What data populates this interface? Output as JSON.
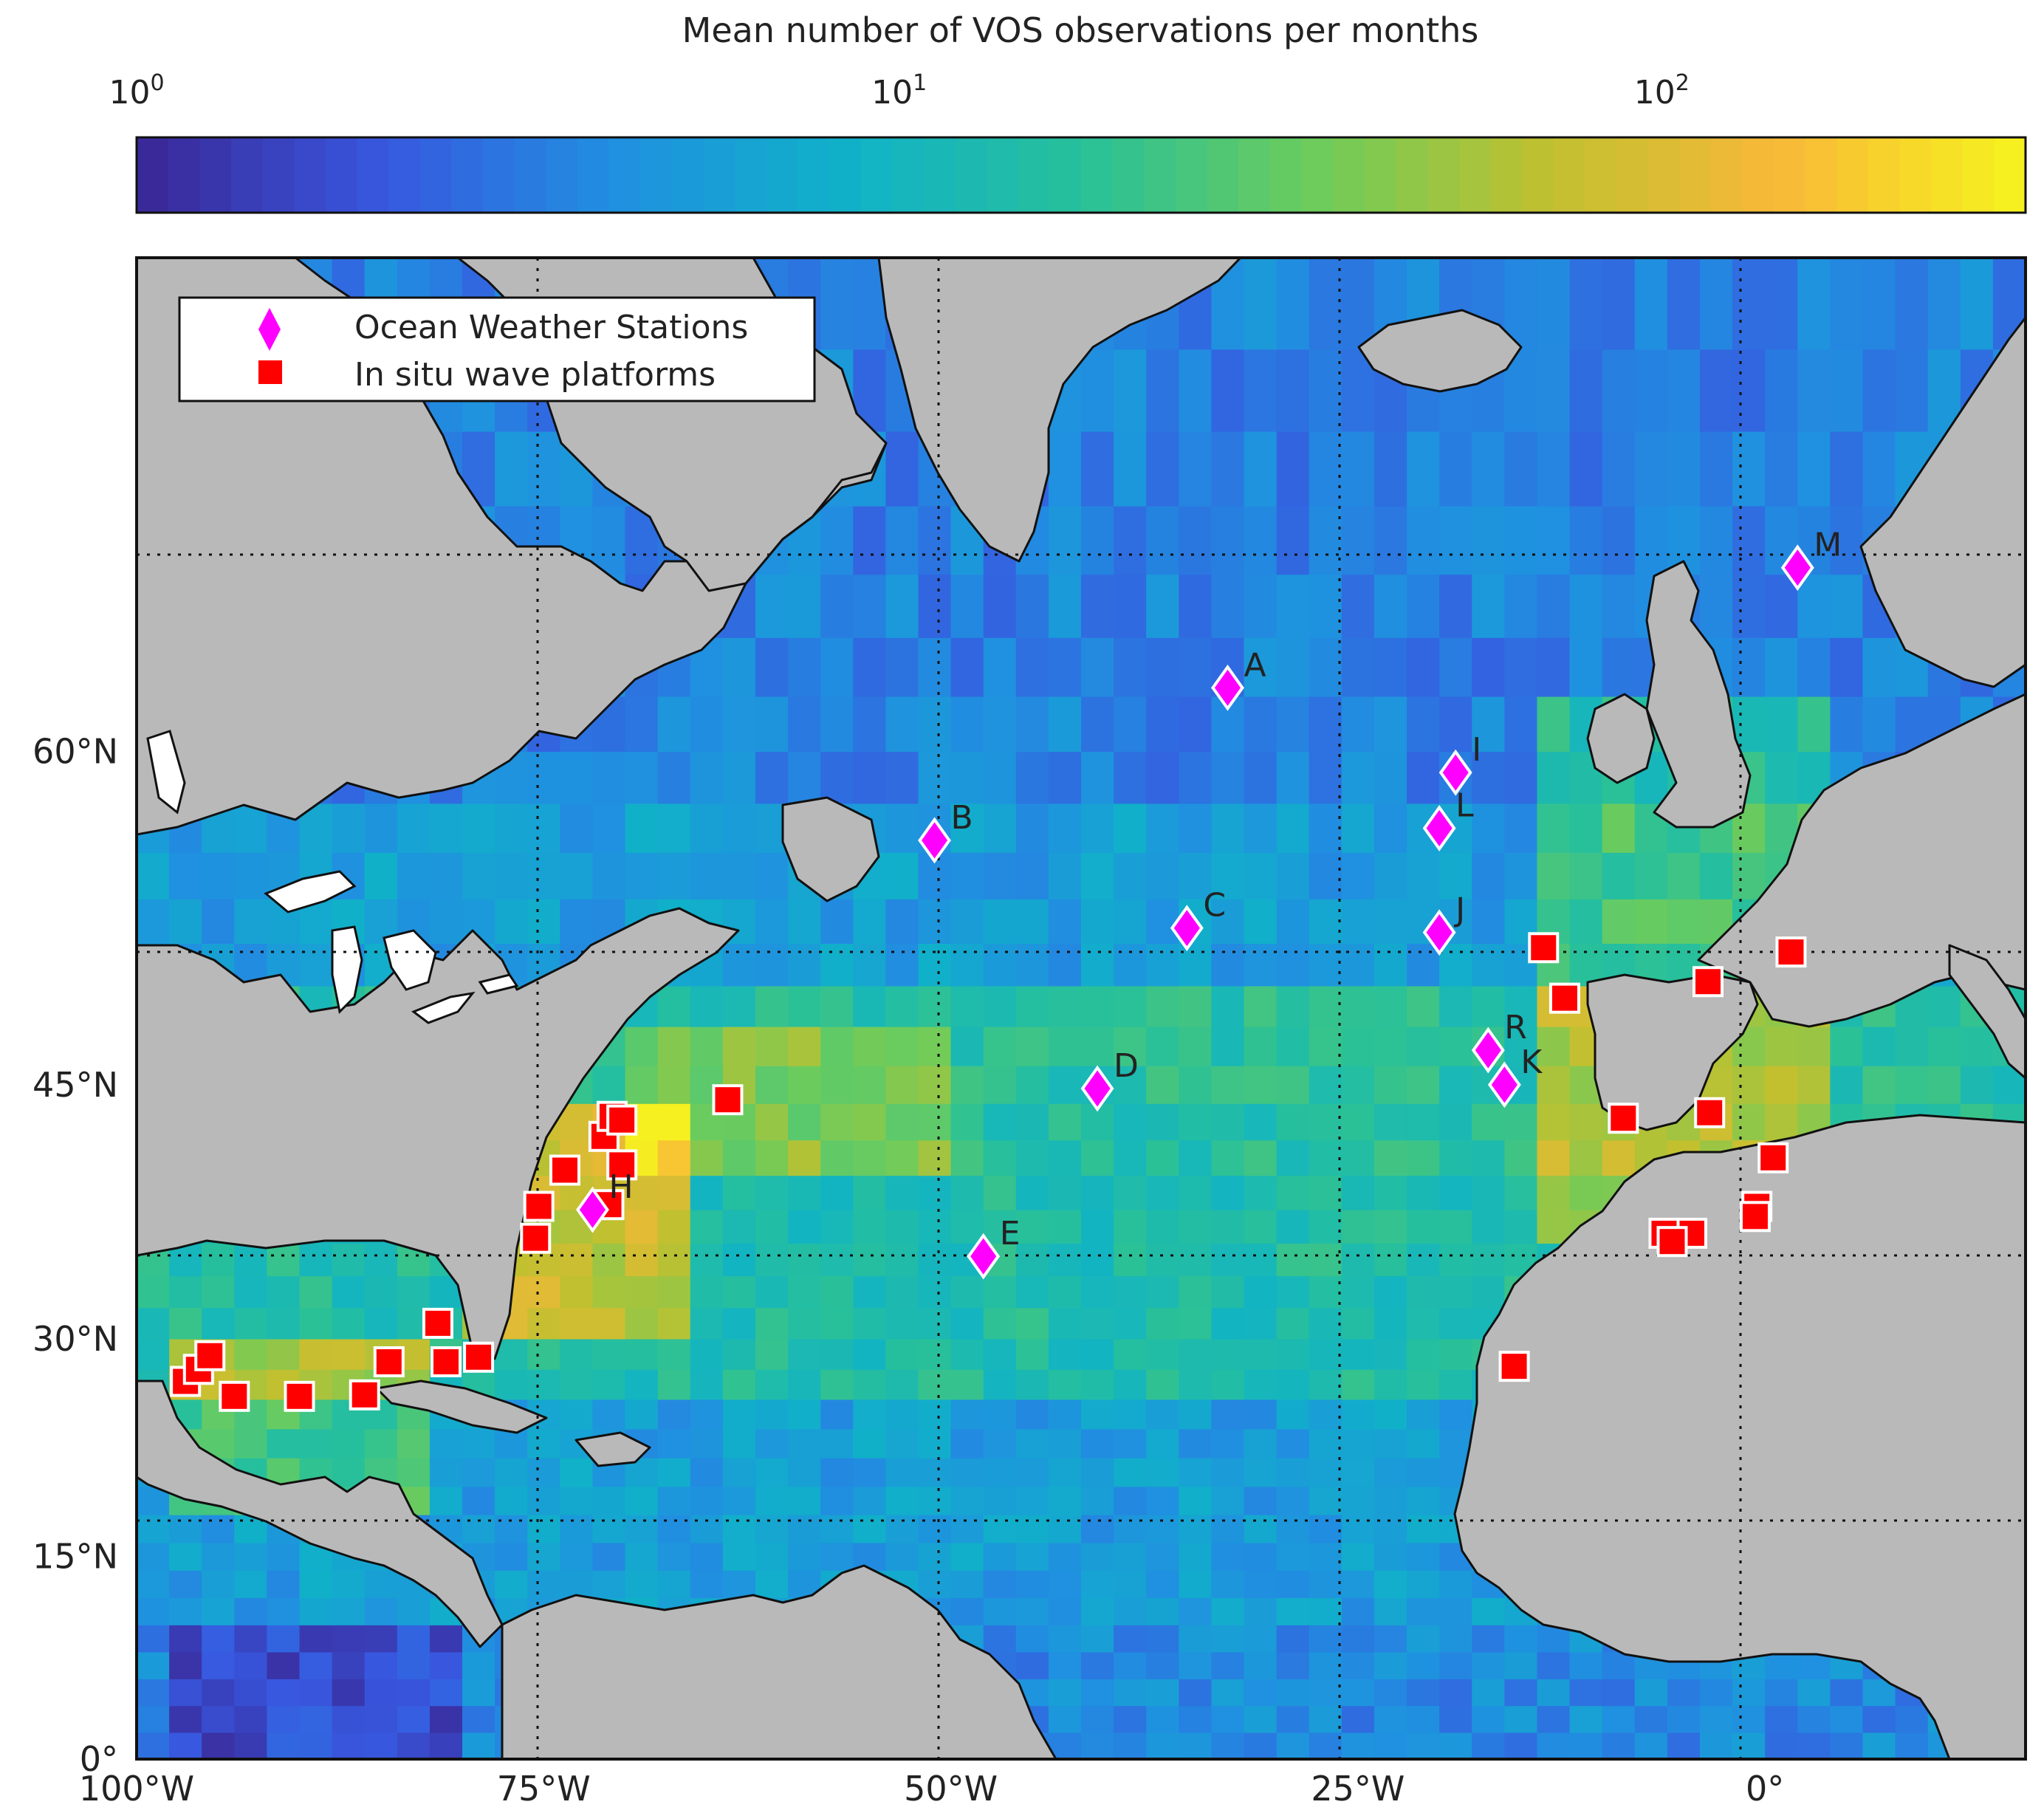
{
  "colorbar": {
    "title": "Mean number of VOS observations per months",
    "tick_labels": [
      {
        "base": "10",
        "exp": "0",
        "value": 1
      },
      {
        "base": "10",
        "exp": "1",
        "value": 10
      },
      {
        "base": "10",
        "exp": "2",
        "value": 100
      }
    ],
    "scale": "log",
    "range": [
      1,
      300
    ],
    "colors": [
      "#3a2a99",
      "#3858e0",
      "#2090e0",
      "#10b2c8",
      "#28c09a",
      "#6ccc5c",
      "#c0c030",
      "#f8b838",
      "#f6f020"
    ]
  },
  "map": {
    "lon_range": [
      -100,
      16
    ],
    "lat_range": [
      0,
      74
    ],
    "ocean_fill_default": "#2aa5d8",
    "land_color": "#b9b9b9",
    "lake_color": "#ffffff",
    "x_tick_labels": [
      {
        "label": "100°W",
        "lon": -100
      },
      {
        "label": "75°W",
        "lon": -75
      },
      {
        "label": "50°W",
        "lon": -50
      },
      {
        "label": "25°W",
        "lon": -25
      },
      {
        "label": "0°",
        "lon": 0
      }
    ],
    "y_tick_labels": [
      {
        "label": "0°",
        "lat": 0
      },
      {
        "label": "15°N",
        "lat": 15
      },
      {
        "label": "30°N",
        "lat": 30
      },
      {
        "label": "45°N",
        "lat": 45
      },
      {
        "label": "60°N",
        "lat": 60
      }
    ]
  },
  "legend": {
    "items": [
      {
        "label": "Ocean Weather Stations",
        "marker": "diamond",
        "color": "#ff00ff"
      },
      {
        "label": "In situ wave platforms",
        "marker": "square",
        "color": "#ff0000"
      }
    ]
  },
  "stations": [
    {
      "label": "A",
      "lon": -33,
      "lat": 62.3
    },
    {
      "label": "B",
      "lon": -51,
      "lat": 56.5
    },
    {
      "label": "C",
      "lon": -35.5,
      "lat": 52.7
    },
    {
      "label": "D",
      "lon": -41,
      "lat": 44.8
    },
    {
      "label": "E",
      "lon": -48,
      "lat": 35.2
    },
    {
      "label": "H",
      "lon": -72,
      "lat": 38
    },
    {
      "label": "I",
      "lon": -19,
      "lat": 59.2
    },
    {
      "label": "J",
      "lon": -20,
      "lat": 52.5
    },
    {
      "label": "K",
      "lon": -16,
      "lat": 45
    },
    {
      "label": "L",
      "lon": -20,
      "lat": 57
    },
    {
      "label": "M",
      "lon": 2,
      "lat": 66.2
    },
    {
      "label": "R",
      "lon": -17,
      "lat": 46.8
    }
  ],
  "platforms": [
    {
      "lon": -97,
      "lat": 27.2
    },
    {
      "lon": -96.2,
      "lat": 28
    },
    {
      "lon": -95.5,
      "lat": 28.9
    },
    {
      "lon": -94,
      "lat": 26.2
    },
    {
      "lon": -90,
      "lat": 26.2
    },
    {
      "lon": -86,
      "lat": 26.3
    },
    {
      "lon": -84.5,
      "lat": 28.5
    },
    {
      "lon": -81.5,
      "lat": 31
    },
    {
      "lon": -81,
      "lat": 28.5
    },
    {
      "lon": -79,
      "lat": 28.8
    },
    {
      "lon": -75.5,
      "lat": 36.3
    },
    {
      "lon": -75.3,
      "lat": 38.2
    },
    {
      "lon": -73.7,
      "lat": 40.3
    },
    {
      "lon": -71.3,
      "lat": 42.2
    },
    {
      "lon": -70.8,
      "lat": 43.3
    },
    {
      "lon": -70.2,
      "lat": 43.1
    },
    {
      "lon": -70.2,
      "lat": 40.6
    },
    {
      "lon": -71,
      "lat": 38.3
    },
    {
      "lon": -63.7,
      "lat": 44.2
    },
    {
      "lon": -13.6,
      "lat": 51.8
    },
    {
      "lon": -12.3,
      "lat": 49.4
    },
    {
      "lon": -3.5,
      "lat": 50.2
    },
    {
      "lon": 1.6,
      "lat": 51.6
    },
    {
      "lon": -8.7,
      "lat": 43.2
    },
    {
      "lon": -3.4,
      "lat": 43.5
    },
    {
      "lon": 0.5,
      "lat": 41
    },
    {
      "lon": -0.5,
      "lat": 38.2
    },
    {
      "lon": -0.6,
      "lat": 37.6
    },
    {
      "lon": -4.5,
      "lat": 36.6
    },
    {
      "lon": -6.2,
      "lat": 36.6
    },
    {
      "lon": -5.7,
      "lat": 36.1
    },
    {
      "lon": -15.4,
      "lat": 28.2
    }
  ]
}
